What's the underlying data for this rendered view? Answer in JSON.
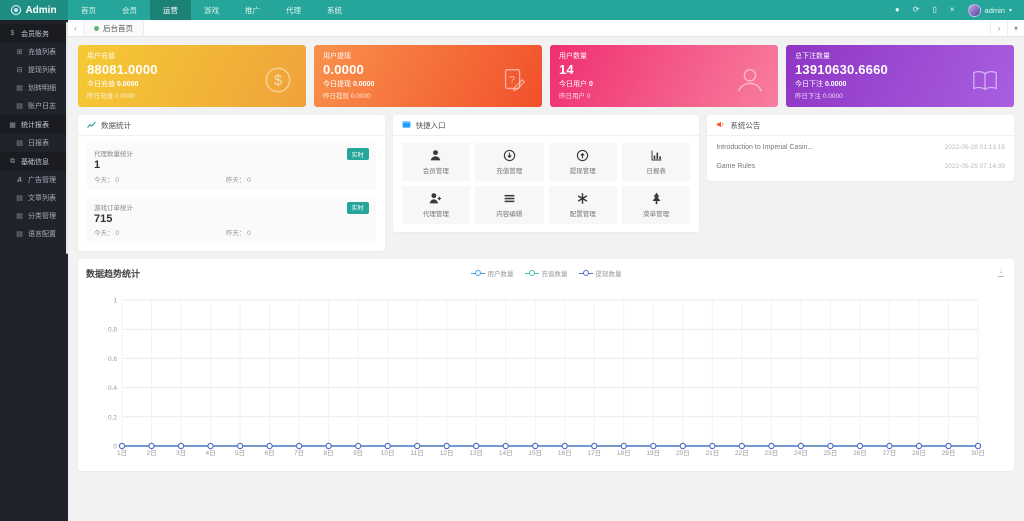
{
  "colors": {
    "accent": "#26a69a",
    "navbar": "#26a69a",
    "navbar_brand": "#1e8e83",
    "sidebar": "#20232b",
    "tab_dot": "#5fb878",
    "notice_icon": "#ff5722",
    "quick_header_icon": "#1e9fff",
    "chart_line": "#5470c6"
  },
  "navbar": {
    "brand": "Admin",
    "items": [
      {
        "label": "首页"
      },
      {
        "label": "会员"
      },
      {
        "label": "运营"
      },
      {
        "label": "游戏"
      },
      {
        "label": "推广"
      },
      {
        "label": "代理"
      },
      {
        "label": "系统"
      }
    ],
    "active_label": "运营",
    "icons": [
      {
        "name": "notification-icon",
        "glyph": "●"
      },
      {
        "name": "refresh-icon",
        "glyph": "⟳"
      },
      {
        "name": "clear-cache-icon",
        "glyph": "▯"
      },
      {
        "name": "fullscreen-icon",
        "glyph": "×"
      }
    ],
    "user": "admin",
    "caret": "▾"
  },
  "tabbar": {
    "scroll_left": "‹",
    "active_tab": "后台首页",
    "scroll_right": "›",
    "menu_caret": "▾"
  },
  "sidebar": {
    "sections": [
      {
        "label": "会员账务",
        "icon": "wallet-icon",
        "glyph": "$",
        "items": [
          {
            "label": "充值列表",
            "icon": "recharge-list-icon",
            "glyph": "⊞"
          },
          {
            "label": "提现列表",
            "icon": "withdraw-list-icon",
            "glyph": "⊟"
          },
          {
            "label": "划转明细",
            "icon": "transfer-detail-icon",
            "glyph": "▤"
          },
          {
            "label": "账户日志",
            "icon": "account-log-icon",
            "glyph": "▤"
          }
        ]
      },
      {
        "label": "统计报表",
        "icon": "report-icon",
        "glyph": "▦",
        "items": [
          {
            "label": "日报表",
            "icon": "daily-report-icon",
            "glyph": "▤"
          }
        ]
      },
      {
        "label": "基础信息",
        "icon": "base-info-icon",
        "glyph": "⧉",
        "items": [
          {
            "label": "广告管理",
            "icon": "ad-manage-icon",
            "glyph": "A"
          },
          {
            "label": "文章列表",
            "icon": "article-list-icon",
            "glyph": "▤"
          },
          {
            "label": "分类管理",
            "icon": "category-manage-icon",
            "glyph": "▤"
          },
          {
            "label": "语言配置",
            "icon": "language-config-icon",
            "glyph": "▤"
          }
        ]
      }
    ]
  },
  "cards": [
    {
      "title": "用户充值",
      "value": "88081.0000",
      "today_label": "今日充值",
      "today_value": "0.0000",
      "yesterday_label": "昨日充值",
      "yesterday_value": "0.0000",
      "icon": "dollar-circle-icon",
      "gradient": [
        "#f5ca33",
        "#efa23b"
      ]
    },
    {
      "title": "用户提现",
      "value": "0.0000",
      "today_label": "今日提现",
      "today_value": "0.0000",
      "yesterday_label": "昨日提现",
      "yesterday_value": "0.0000",
      "icon": "withdraw-doc-icon",
      "gradient": [
        "#f9914c",
        "#f1502b"
      ]
    },
    {
      "title": "用户数量",
      "value": "14",
      "today_label": "今日用户",
      "today_value": "0",
      "yesterday_label": "昨日用户",
      "yesterday_value": "0",
      "icon": "users-icon",
      "gradient": [
        "#ef2f70",
        "#f87e9e"
      ]
    },
    {
      "title": "总下注数量",
      "value": "13910630.6660",
      "today_label": "今日下注",
      "today_value": "0.0000",
      "yesterday_label": "昨日下注",
      "yesterday_value": "0.0000",
      "icon": "open-book-icon",
      "gradient": [
        "#8f35c5",
        "#a85fe0"
      ]
    }
  ],
  "stats_panel": {
    "title": "数据统计",
    "blocks": [
      {
        "label": "代理数量统计",
        "badge": "实时",
        "value": "1",
        "today_label": "今天：",
        "today_value": "0",
        "yesterday_label": "昨天：",
        "yesterday_value": "0"
      },
      {
        "label": "游戏订单统计",
        "badge": "实时",
        "value": "715",
        "today_label": "今天：",
        "today_value": "0",
        "yesterday_label": "昨天：",
        "yesterday_value": "0"
      }
    ]
  },
  "quick_panel": {
    "title": "快捷入口",
    "tiles": [
      {
        "label": "会员管理",
        "icon": "member-manage-icon"
      },
      {
        "label": "充值管理",
        "icon": "recharge-manage-icon"
      },
      {
        "label": "提现管理",
        "icon": "withdraw-manage-icon"
      },
      {
        "label": "日报表",
        "icon": "daily-report-chart-icon"
      },
      {
        "label": "代理管理",
        "icon": "agent-manage-icon"
      },
      {
        "label": "内容编辑",
        "icon": "content-edit-icon"
      },
      {
        "label": "配置管理",
        "icon": "config-manage-icon"
      },
      {
        "label": "菜单管理",
        "icon": "menu-tree-icon"
      }
    ]
  },
  "notice_panel": {
    "title": "系统公告",
    "items": [
      {
        "title": "Introduction to Imperial Casin...",
        "time": "2022-05-28 01:13:15"
      },
      {
        "title": "Game Rules",
        "time": "2022-05-25 07:14:39"
      }
    ]
  },
  "chart_data": {
    "type": "line",
    "title": "数据趋势统计",
    "x": [
      "1日",
      "2日",
      "3日",
      "4日",
      "5日",
      "6日",
      "7日",
      "8日",
      "9日",
      "10日",
      "11日",
      "12日",
      "13日",
      "14日",
      "15日",
      "16日",
      "17日",
      "18日",
      "19日",
      "20日",
      "21日",
      "22日",
      "23日",
      "24日",
      "25日",
      "26日",
      "27日",
      "28日",
      "29日",
      "30日"
    ],
    "series": [
      {
        "name": "用户数量",
        "color": "#4aa3e8",
        "values": [
          0,
          0,
          0,
          0,
          0,
          0,
          0,
          0,
          0,
          0,
          0,
          0,
          0,
          0,
          0,
          0,
          0,
          0,
          0,
          0,
          0,
          0,
          0,
          0,
          0,
          0,
          0,
          0,
          0,
          0
        ]
      },
      {
        "name": "充值数量",
        "color": "#45c5ae",
        "values": [
          0,
          0,
          0,
          0,
          0,
          0,
          0,
          0,
          0,
          0,
          0,
          0,
          0,
          0,
          0,
          0,
          0,
          0,
          0,
          0,
          0,
          0,
          0,
          0,
          0,
          0,
          0,
          0,
          0,
          0
        ]
      },
      {
        "name": "提现数量",
        "color": "#5470c6",
        "values": [
          0,
          0,
          0,
          0,
          0,
          0,
          0,
          0,
          0,
          0,
          0,
          0,
          0,
          0,
          0,
          0,
          0,
          0,
          0,
          0,
          0,
          0,
          0,
          0,
          0,
          0,
          0,
          0,
          0,
          0
        ]
      }
    ],
    "ylim": [
      0,
      1
    ],
    "yticks": [
      0,
      0.2,
      0.4,
      0.6,
      0.8,
      1
    ],
    "xlabel": "",
    "ylabel": "",
    "grid": true,
    "legend_position": "top-center",
    "download_glyph": "↓"
  }
}
